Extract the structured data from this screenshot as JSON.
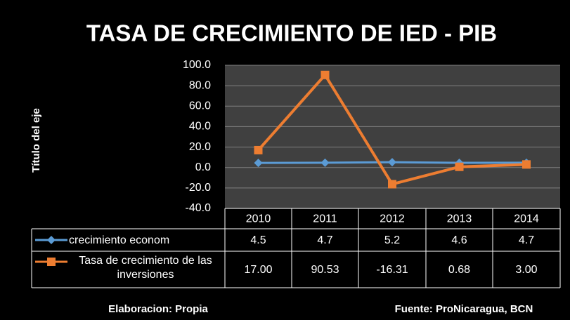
{
  "chart_data": {
    "type": "line",
    "title": "TASA DE CRECIMIENTO DE IED - PIB",
    "y_label": "Título del eje",
    "categories": [
      "2010",
      "2011",
      "2012",
      "2013",
      "2014"
    ],
    "series": [
      {
        "name": "crecimiento econom",
        "color": "#5b9bd5",
        "values": [
          4.5,
          4.7,
          5.2,
          4.6,
          4.7
        ]
      },
      {
        "name": "Tasa de crecimiento de las inversiones",
        "color": "#ed7d31",
        "values": [
          17.0,
          90.53,
          -16.31,
          0.68,
          3.0
        ],
        "value_labels": [
          "17.00",
          "90.53",
          "-16.31",
          "0.68",
          "3.00"
        ]
      }
    ],
    "ylim": [
      -40,
      100
    ],
    "yticks": [
      {
        "value": -40,
        "label": "-40.0"
      },
      {
        "value": -20,
        "label": "-20.0"
      },
      {
        "value": 0,
        "label": "0.0"
      },
      {
        "value": 20,
        "label": "20.0"
      },
      {
        "value": 40,
        "label": "40.0"
      },
      {
        "value": 60,
        "label": "60.0"
      },
      {
        "value": 80,
        "label": "80.0"
      },
      {
        "value": 100,
        "label": "100.0"
      }
    ],
    "grid": true,
    "footer_left": "Elaboracion: Propia",
    "footer_right": "Fuente: ProNicaragua, BCN"
  }
}
